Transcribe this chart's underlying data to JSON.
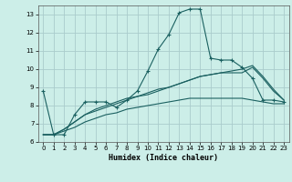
{
  "xlabel": "Humidex (Indice chaleur)",
  "background_color": "#cceee8",
  "grid_color": "#aacccc",
  "line_color": "#1a6060",
  "xlim": [
    -0.5,
    23.5
  ],
  "ylim": [
    6,
    13.5
  ],
  "yticks": [
    6,
    7,
    8,
    9,
    10,
    11,
    12,
    13
  ],
  "xticks": [
    0,
    1,
    2,
    3,
    4,
    5,
    6,
    7,
    8,
    9,
    10,
    11,
    12,
    13,
    14,
    15,
    16,
    17,
    18,
    19,
    20,
    21,
    22,
    23
  ],
  "line1_x": [
    0,
    1,
    2,
    3,
    4,
    5,
    6,
    7,
    8,
    9,
    10,
    11,
    12,
    13,
    14,
    15,
    16,
    17,
    18,
    19,
    20,
    21,
    22,
    23
  ],
  "line1_y": [
    8.8,
    6.4,
    6.4,
    7.5,
    8.2,
    8.2,
    8.2,
    7.9,
    8.3,
    8.8,
    9.9,
    11.1,
    11.9,
    13.1,
    13.3,
    13.3,
    10.6,
    10.5,
    10.5,
    10.1,
    9.5,
    8.3,
    8.3,
    8.2
  ],
  "line2_x": [
    0,
    1,
    2,
    3,
    4,
    5,
    6,
    7,
    8,
    9,
    10,
    11,
    12,
    13,
    14,
    15,
    16,
    17,
    18,
    19,
    20,
    21,
    22,
    23
  ],
  "line2_y": [
    6.4,
    6.4,
    6.6,
    6.8,
    7.1,
    7.3,
    7.5,
    7.6,
    7.8,
    7.9,
    8.0,
    8.1,
    8.2,
    8.3,
    8.4,
    8.4,
    8.4,
    8.4,
    8.4,
    8.4,
    8.3,
    8.2,
    8.1,
    8.1
  ],
  "line3_x": [
    0,
    1,
    2,
    3,
    4,
    5,
    6,
    7,
    8,
    9,
    10,
    11,
    12,
    13,
    14,
    15,
    16,
    17,
    18,
    19,
    20,
    21,
    22,
    23
  ],
  "line3_y": [
    6.4,
    6.4,
    6.7,
    7.1,
    7.5,
    7.7,
    7.9,
    8.1,
    8.3,
    8.5,
    8.6,
    8.8,
    9.0,
    9.2,
    9.4,
    9.6,
    9.7,
    9.8,
    9.8,
    9.8,
    10.1,
    9.5,
    8.8,
    8.3
  ],
  "line4_x": [
    0,
    1,
    2,
    3,
    4,
    5,
    6,
    7,
    8,
    9,
    10,
    11,
    12,
    13,
    14,
    15,
    16,
    17,
    18,
    19,
    20,
    21,
    22,
    23
  ],
  "line4_y": [
    6.4,
    6.4,
    6.7,
    7.1,
    7.5,
    7.8,
    8.0,
    8.2,
    8.4,
    8.5,
    8.7,
    8.9,
    9.0,
    9.2,
    9.4,
    9.6,
    9.7,
    9.8,
    9.9,
    10.0,
    10.2,
    9.6,
    8.9,
    8.3
  ]
}
